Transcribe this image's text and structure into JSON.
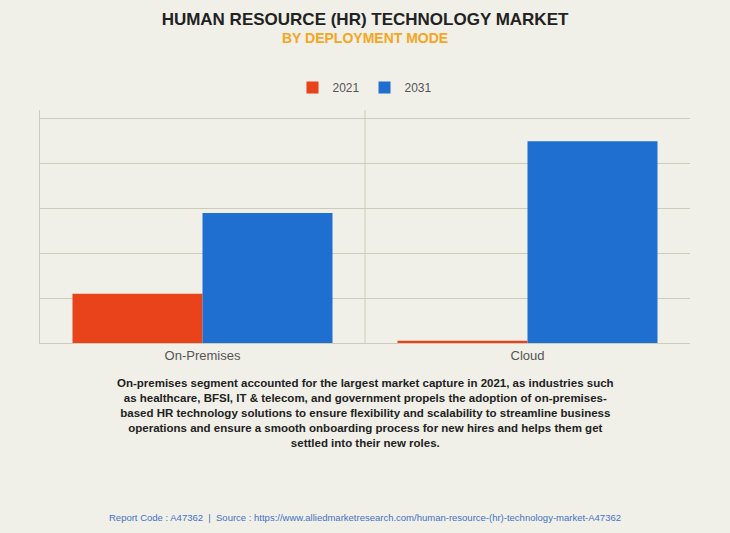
{
  "chart_data": {
    "type": "bar",
    "title": "HUMAN RESOURCE (HR) TECHNOLOGY MARKET",
    "subtitle": "BY DEPLOYMENT MODE",
    "categories": [
      "On-Premises",
      "Cloud"
    ],
    "series": [
      {
        "name": "2021",
        "color": "#E8431A",
        "values": [
          5.5,
          0.25
        ]
      },
      {
        "name": "2031",
        "color": "#1F6FD0",
        "values": [
          14.5,
          22.5
        ]
      }
    ],
    "ylim": [
      0,
      26
    ],
    "yticks": [
      0,
      5,
      10,
      15,
      20,
      25
    ],
    "grid": true,
    "legend": "top",
    "tick_labels": "x",
    "annotations": [
      "On-premises segment accounted for the largest market capture in 2021, as industries such\nas healthcare, BFSI, IT & telecom, and government propels the adoption of on-premises-\nbased HR technology solutions to ensure flexibility and scalability to streamline business\noperations and ensure a smooth onboarding process for new hires and helps them get\nsettled into their new roles.",
      "Report Code : A47362  |  Source : https://www.alliedmarketresearch.com/human-resource-(hr)-technology-market-A47362"
    ]
  }
}
